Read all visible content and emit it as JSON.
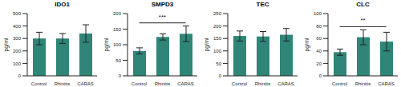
{
  "chart_data": [
    {
      "type": "bar",
      "title": "IDO1",
      "ylabel": "pg/ml",
      "categories": [
        "Control",
        "Rhinitis",
        "CARAS"
      ],
      "values": [
        300,
        300,
        340
      ],
      "errors": [
        50,
        40,
        70
      ],
      "color": "#2f8577",
      "ylim": [
        0,
        500
      ],
      "yticks": [
        0,
        100,
        200,
        300,
        400,
        500
      ],
      "grid": false
    },
    {
      "type": "bar",
      "title": "SMPD3",
      "ylabel": "pg/ml",
      "categories": [
        "Control",
        "Rhinitis",
        "CARAS"
      ],
      "values": [
        80,
        125,
        135
      ],
      "errors": [
        10,
        10,
        25
      ],
      "color": "#2f8577",
      "ylim": [
        0,
        200
      ],
      "yticks": [
        0,
        50,
        100,
        150,
        200
      ],
      "grid": false,
      "annotations": [
        {
          "text": "***",
          "between": [
            "Control",
            "CARAS"
          ]
        }
      ]
    },
    {
      "type": "bar",
      "title": "TEC",
      "ylabel": "pg/ml",
      "categories": [
        "Control",
        "Rhinitis",
        "CARAS"
      ],
      "values": [
        160,
        158,
        165
      ],
      "errors": [
        20,
        20,
        25
      ],
      "color": "#2f8577",
      "ylim": [
        0,
        250
      ],
      "yticks": [
        0,
        50,
        100,
        150,
        200,
        250
      ],
      "grid": false
    },
    {
      "type": "bar",
      "title": "CLC",
      "ylabel": "pg/ml",
      "categories": [
        "Control",
        "Rhinitis",
        "CARAS"
      ],
      "values": [
        38,
        62,
        55
      ],
      "errors": [
        5,
        12,
        15
      ],
      "color": "#2f8577",
      "ylim": [
        0,
        100
      ],
      "yticks": [
        0,
        20,
        40,
        60,
        80,
        100
      ],
      "grid": false,
      "annotations": [
        {
          "text": "**",
          "between": [
            "Control",
            "CARAS"
          ]
        }
      ]
    }
  ]
}
